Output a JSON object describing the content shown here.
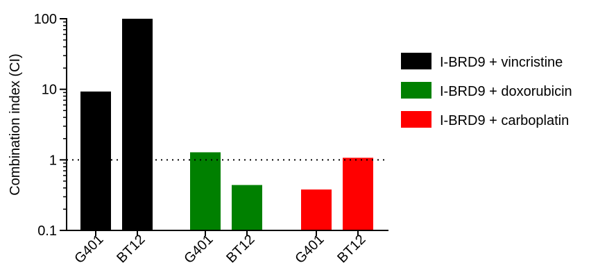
{
  "chart_data": {
    "type": "bar",
    "title": "",
    "xlabel": "",
    "ylabel": "Combination index (CI)",
    "yscale": "log",
    "ylim": [
      0.1,
      100
    ],
    "yticks": [
      0.1,
      1,
      10,
      100
    ],
    "ytick_labels": [
      "0.1",
      "1",
      "10",
      "100"
    ],
    "reference_line": {
      "y": 1,
      "style": "dotted"
    },
    "legend_position": "right",
    "grid": false,
    "groups": [
      {
        "name": "I-BRD9 + vincristine",
        "color": "#000000",
        "bars": [
          {
            "label": "G401",
            "value": 9.3
          },
          {
            "label": "BT12",
            "value": 100
          }
        ]
      },
      {
        "name": "I-BRD9 + doxorubicin",
        "color": "#008000",
        "bars": [
          {
            "label": "G401",
            "value": 1.28
          },
          {
            "label": "BT12",
            "value": 0.44
          }
        ]
      },
      {
        "name": "I-BRD9 + carboplatin",
        "color": "#ff0000",
        "bars": [
          {
            "label": "G401",
            "value": 0.38
          },
          {
            "label": "BT12",
            "value": 1.07
          }
        ]
      }
    ]
  }
}
